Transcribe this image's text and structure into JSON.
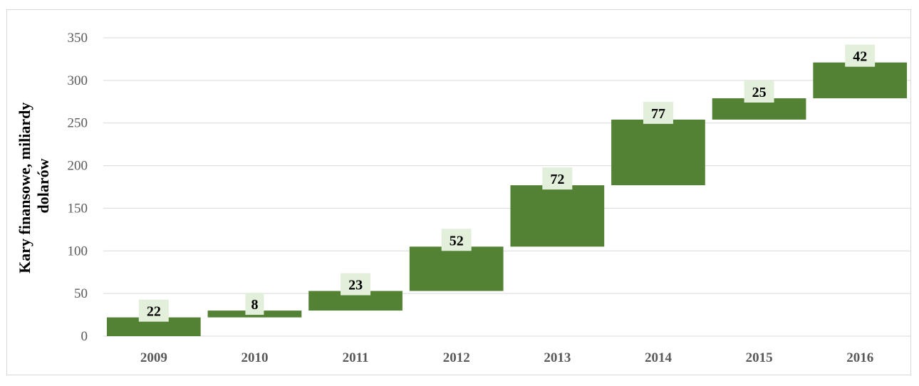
{
  "chart_data": {
    "type": "bar",
    "subtype": "waterfall",
    "categories": [
      "2009",
      "2010",
      "2011",
      "2012",
      "2013",
      "2014",
      "2015",
      "2016"
    ],
    "values": [
      22,
      8,
      23,
      52,
      72,
      77,
      25,
      42
    ],
    "data_labels": [
      "22",
      "8",
      "23",
      "52",
      "72",
      "77",
      "25",
      "42"
    ],
    "cumulative_start": [
      0,
      22,
      30,
      53,
      105,
      177,
      254,
      279
    ],
    "cumulative_end": [
      22,
      30,
      53,
      105,
      177,
      254,
      279,
      321
    ],
    "title": "",
    "xlabel": "",
    "ylabel_lines": [
      "Kary finansowe, miliardy",
      "dolarów"
    ],
    "ylim": [
      0,
      350
    ],
    "yticks": [
      "0",
      "50",
      "100",
      "150",
      "200",
      "250",
      "300",
      "350"
    ],
    "grid": true,
    "legend": "none",
    "colors": {
      "bar": "#548235",
      "label_box": "#e2efda",
      "grid": "#d9d9d9",
      "axis_text": "#595959",
      "frame": "#d9d9d9"
    }
  }
}
